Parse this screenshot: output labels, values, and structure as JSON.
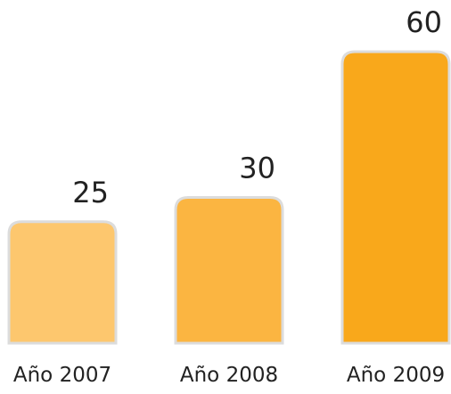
{
  "chart_data": {
    "type": "bar",
    "categories": [
      "Año 2007",
      "Año 2008",
      "Año 2009"
    ],
    "values": [
      25,
      30,
      60
    ],
    "colors": [
      "#fdc76e",
      "#fbb541",
      "#f9a81b"
    ]
  }
}
